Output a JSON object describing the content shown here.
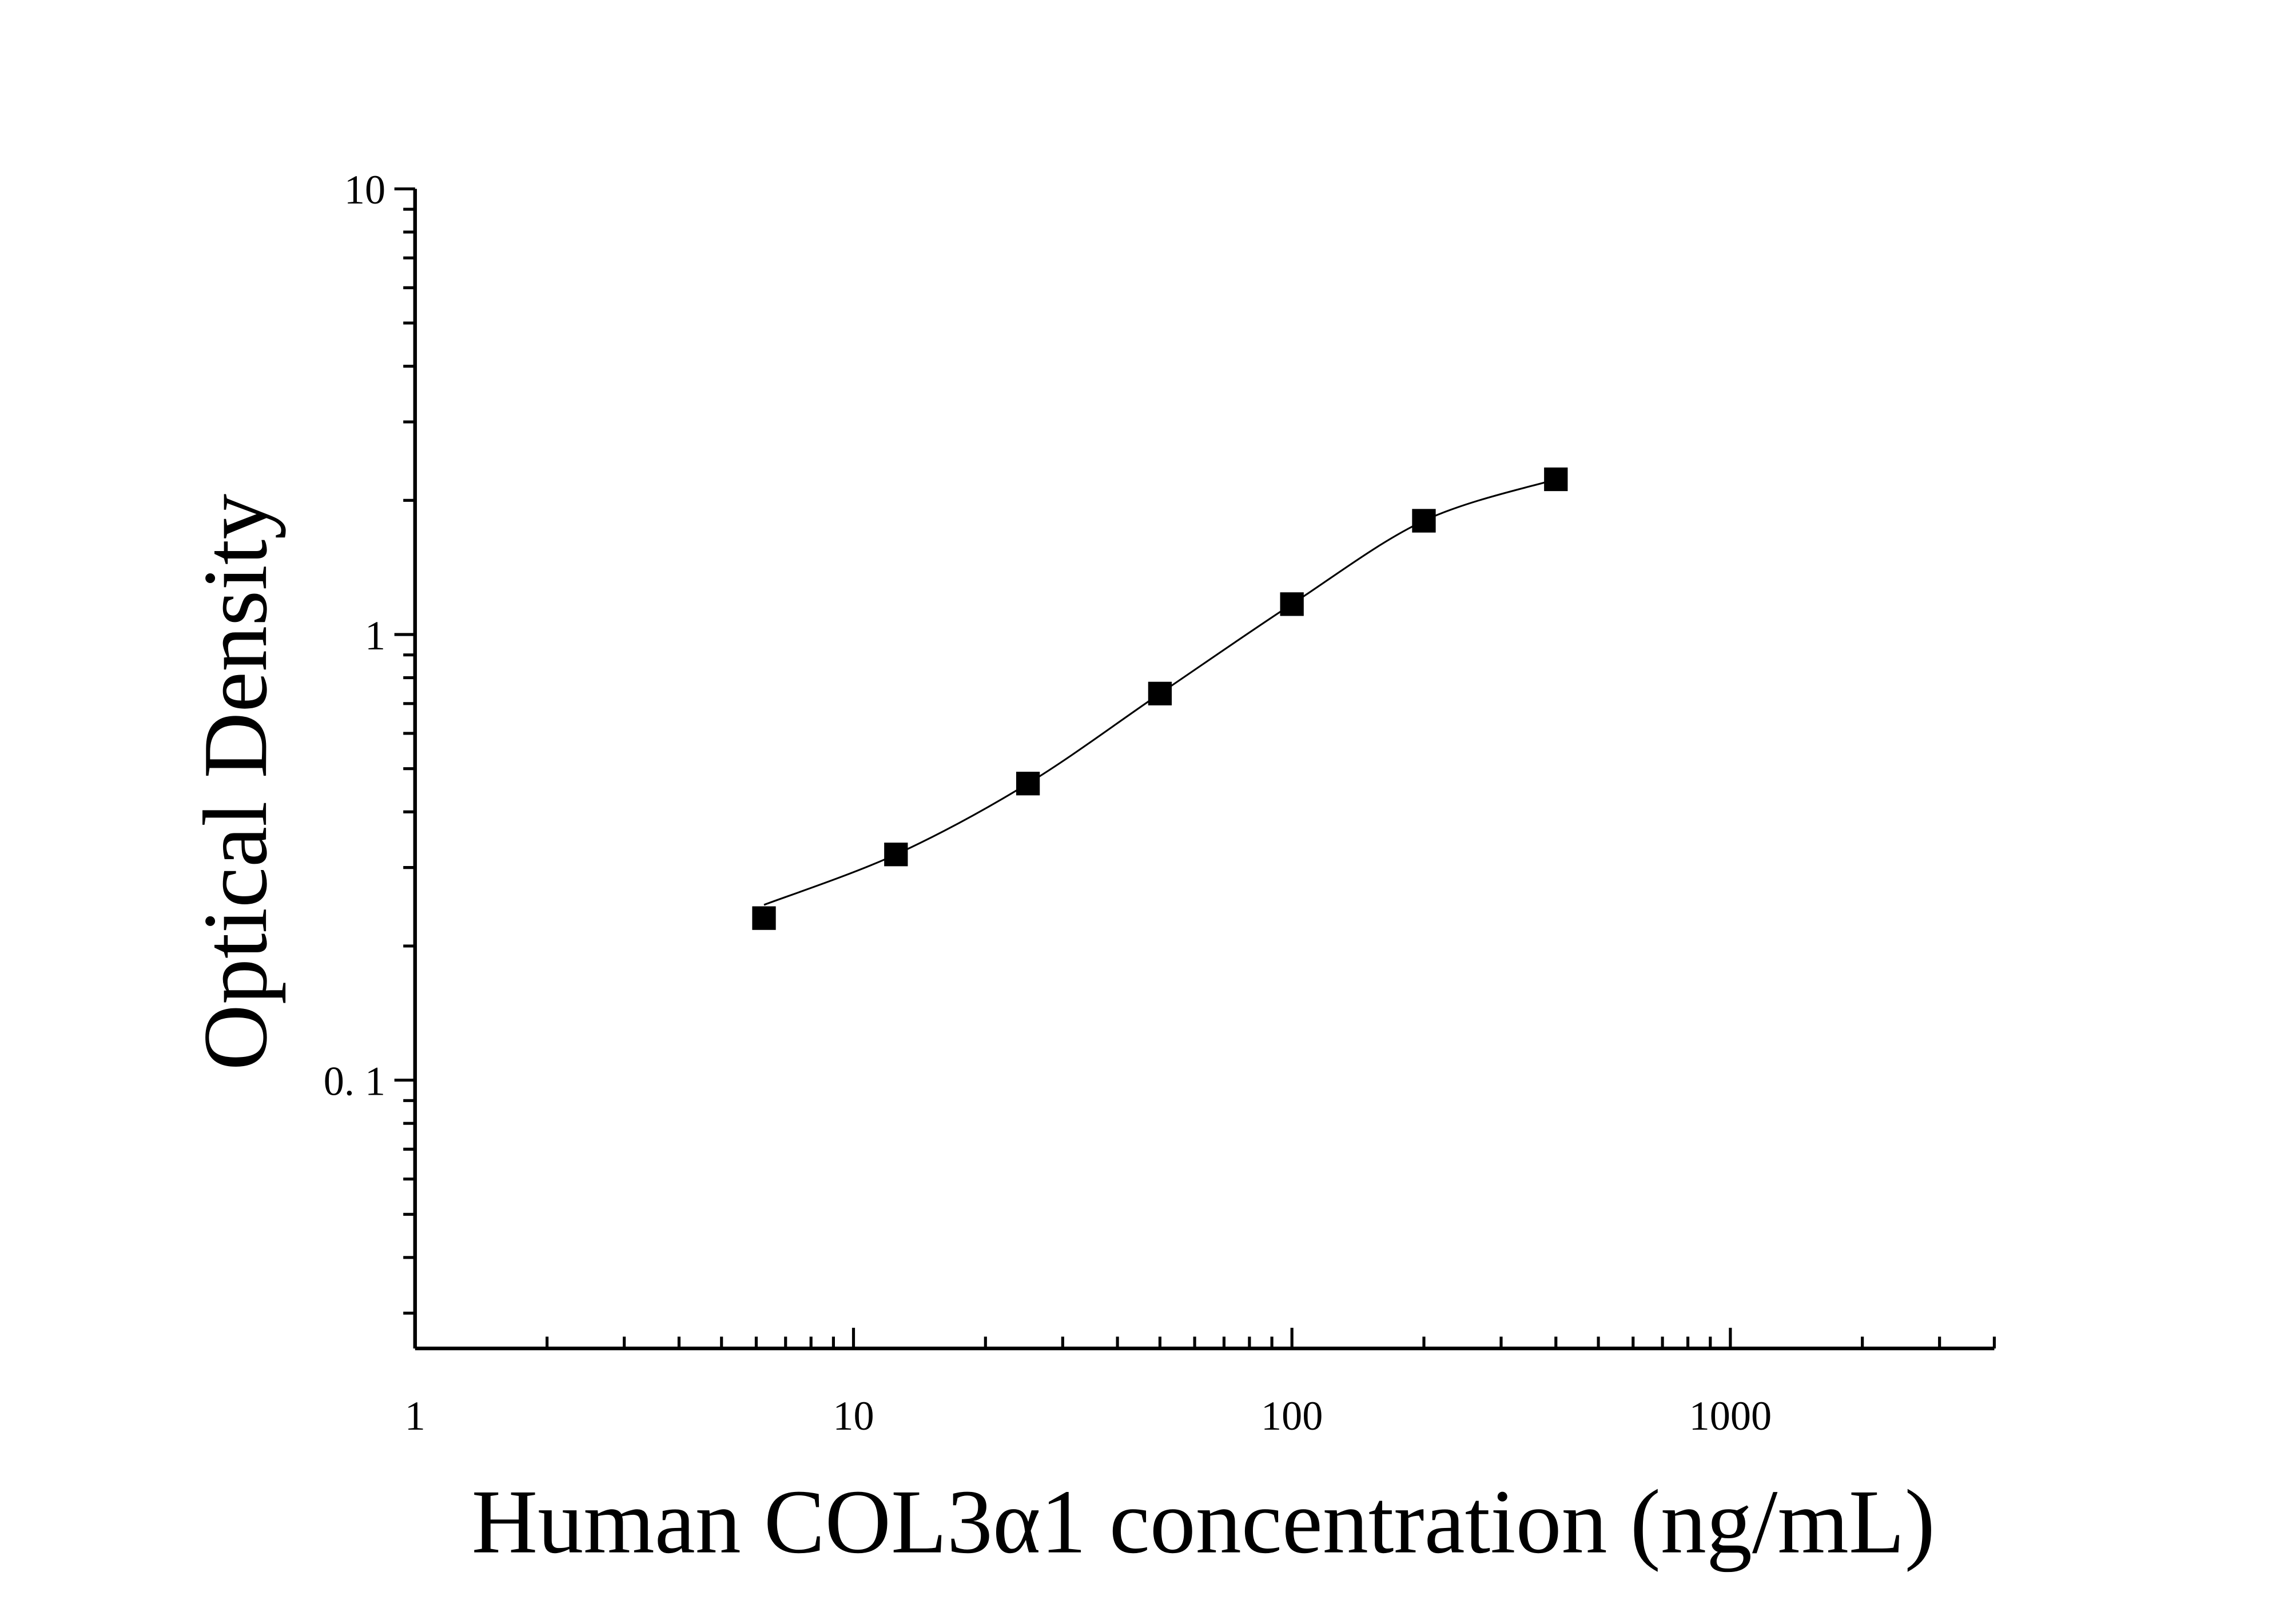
{
  "chart_data": {
    "type": "scatter",
    "title": "",
    "xlabel": "Human COL3α1 concentration (ng/mL)",
    "ylabel": "Optical Density",
    "x_scale": "log",
    "y_scale": "log",
    "xlim": [
      1,
      4000
    ],
    "ylim": [
      0.025,
      10
    ],
    "x_ticks": [
      1,
      10,
      100,
      1000
    ],
    "x_tick_labels": [
      "1",
      "10",
      "100",
      "1000"
    ],
    "y_ticks": [
      0.1,
      1,
      10
    ],
    "y_tick_labels": [
      "0. 1",
      "1",
      "10"
    ],
    "grid": false,
    "legend": "none",
    "marker": "square",
    "marker_color": "#000000",
    "line_color": "#000000",
    "fit_curve": true,
    "x": [
      6.25,
      12.5,
      25,
      50,
      100,
      200,
      400
    ],
    "y": [
      0.231,
      0.321,
      0.463,
      0.737,
      1.17,
      1.8,
      2.23
    ]
  }
}
